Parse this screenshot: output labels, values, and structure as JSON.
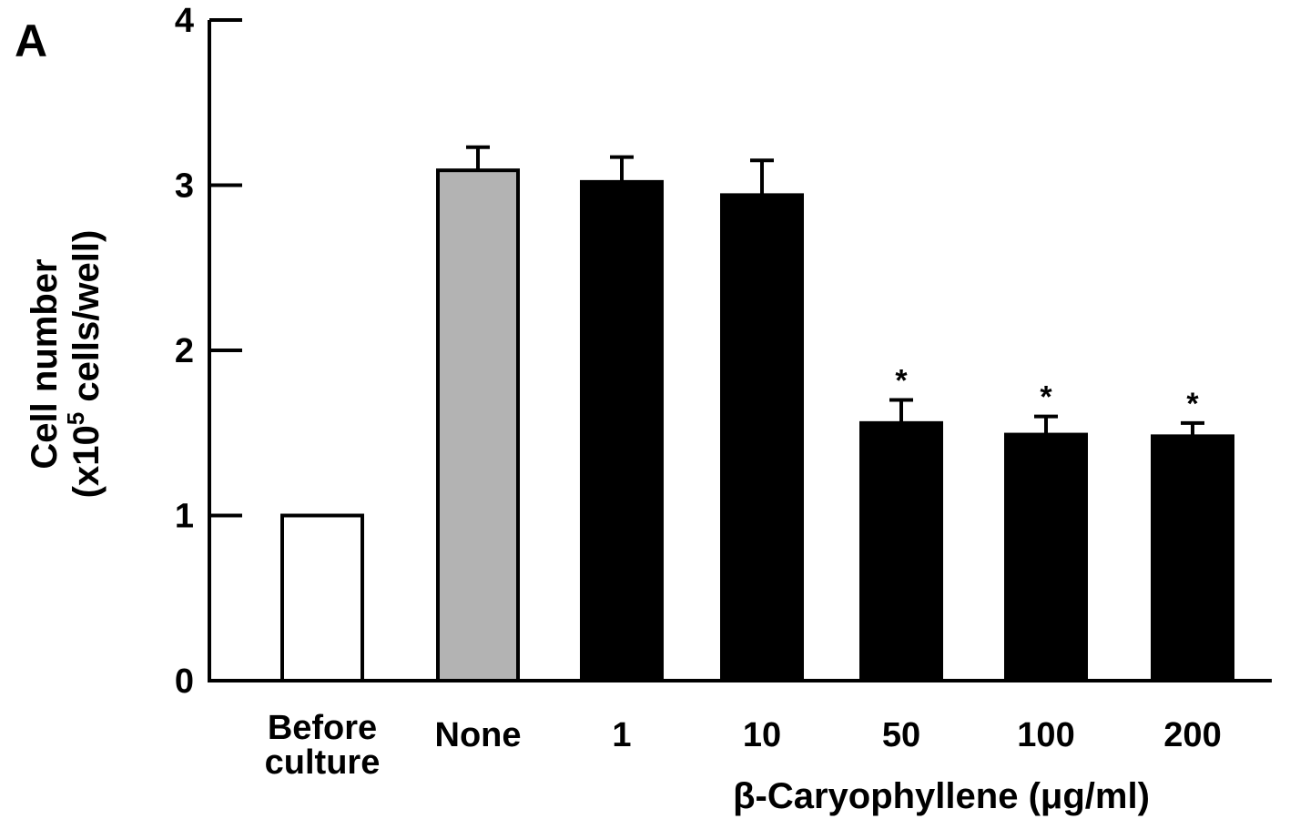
{
  "panel_label": "A",
  "chart_data": {
    "type": "bar",
    "categories": [
      [
        "Before",
        "culture"
      ],
      [
        "None"
      ],
      [
        "1"
      ],
      [
        "10"
      ],
      [
        "50"
      ],
      [
        "100"
      ],
      [
        "200"
      ]
    ],
    "values": [
      1.0,
      3.09,
      3.02,
      2.94,
      1.56,
      1.49,
      1.48
    ],
    "errors": [
      0,
      0.14,
      0.15,
      0.21,
      0.14,
      0.11,
      0.08
    ],
    "significance": [
      "",
      "",
      "",
      "",
      "*",
      "*",
      "*"
    ],
    "bar_colors": [
      "#ffffff",
      "#b3b3b3",
      "#000000",
      "#000000",
      "#000000",
      "#000000",
      "#000000"
    ],
    "ylabel_line1": "Cell number",
    "ylabel_line2_prefix": "(x10",
    "ylabel_superscript": "5",
    "ylabel_line2_suffix": " cells/well)",
    "xlabel": "β-Caryophyllene (μg/ml)",
    "ylim": [
      0,
      4
    ],
    "yticks": [
      0,
      1,
      2,
      3,
      4
    ],
    "grid": false
  }
}
